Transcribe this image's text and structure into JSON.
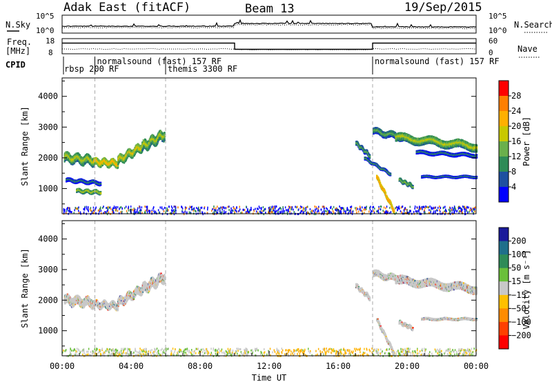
{
  "header": {
    "station": "Adak East (fitACF)",
    "beam": "Beam 13",
    "date": "19/Sep/2015"
  },
  "noise_panel": {
    "left_label": "N.Sky",
    "right_label": "N.Search",
    "left_ticks": [
      "10^5",
      "10^0"
    ],
    "right_ticks": [
      "10^5",
      "10^0"
    ]
  },
  "freq_panel": {
    "left_label_1": "Freq.",
    "left_label_2": "[MHz]",
    "right_label": "Nave",
    "left_ticks": [
      "18",
      "8"
    ],
    "right_ticks": [
      "60",
      "0"
    ]
  },
  "cpid": {
    "label": "CPID",
    "segments": [
      {
        "name": "rbsp 200 RF",
        "start_h": 0,
        "end_h": 1.9
      },
      {
        "name": "normalsound (fast) 157 RF",
        "start_h": 1.9,
        "end_h": 6.0
      },
      {
        "name": "themis 3300 RF",
        "start_h": 6.0,
        "end_h": 18.0
      },
      {
        "name": "normalsound (fast) 157 RF",
        "start_h": 18.0,
        "end_h": 24.0
      }
    ]
  },
  "power_panel": {
    "ylabel": "Slant Range [km]",
    "colorbar_label": "Power [dB]",
    "colorbar_ticks": [
      "28",
      "24",
      "20",
      "16",
      "12",
      "8",
      "4"
    ],
    "colorbar_colors": [
      "#ff0000",
      "#ff7f00",
      "#ffb000",
      "#c8c800",
      "#6ab04c",
      "#2e8b57",
      "#1e50a0",
      "#0000ff"
    ]
  },
  "velocity_panel": {
    "ylabel": "Slant Range [km]",
    "colorbar_label": "Velocity [m s⁻¹]",
    "colorbar_ticks": [
      "200",
      "100",
      "50",
      "15",
      "−15",
      "−50",
      "−100",
      "−200"
    ],
    "colorbar_colors": [
      "#1a1a9a",
      "#1f6f8b",
      "#2e8b57",
      "#6abf3a",
      "#c8c8c8",
      "#ffc000",
      "#ff8c00",
      "#ff4000",
      "#ff0000"
    ]
  },
  "x_axis": {
    "label": "Time UT",
    "ticks": [
      "00:00",
      "04:00",
      "08:00",
      "12:00",
      "16:00",
      "20:00",
      "00:00"
    ]
  },
  "chart_data": {
    "type": "heatmap",
    "title": "Adak East (fitACF) Beam 13 19/Sep/2015",
    "xlabel": "Time UT",
    "ylabel": "Slant Range [km]",
    "xlim_hours": [
      0,
      24
    ],
    "ylim_km": [
      180,
      4600
    ],
    "ytick_values_km": [
      1000,
      2000,
      3000,
      4000
    ],
    "xtick_hours": [
      0,
      4,
      8,
      12,
      16,
      20,
      24
    ],
    "mode_change_hours": [
      1.9,
      6.0,
      18.0
    ],
    "frequency_mhz": [
      {
        "start_h": 0,
        "end_h": 10,
        "value": 15.5
      },
      {
        "start_h": 10,
        "end_h": 18,
        "value": 10.5
      },
      {
        "start_h": 18,
        "end_h": 24,
        "value": 15.5
      }
    ],
    "power_bands": [
      {
        "t0": 0.1,
        "t1": 1.8,
        "r_start": 2050,
        "r_end": 1950,
        "width": 280,
        "db": 18
      },
      {
        "t0": 1.8,
        "t1": 3.2,
        "r_start": 1900,
        "r_end": 1850,
        "width": 220,
        "db": 22
      },
      {
        "t0": 3.2,
        "t1": 4.6,
        "r_start": 1950,
        "r_end": 2400,
        "width": 260,
        "db": 20
      },
      {
        "t0": 4.6,
        "t1": 5.9,
        "r_start": 2400,
        "r_end": 2800,
        "width": 300,
        "db": 18
      },
      {
        "t0": 0.2,
        "t1": 2.2,
        "r_start": 1300,
        "r_end": 1200,
        "width": 120,
        "db": 10
      },
      {
        "t0": 0.8,
        "t1": 2.2,
        "r_start": 950,
        "r_end": 900,
        "width": 120,
        "db": 18
      },
      {
        "t0": 17.0,
        "t1": 17.8,
        "r_start": 2500,
        "r_end": 2100,
        "width": 140,
        "db": 14
      },
      {
        "t0": 18.0,
        "t1": 20.5,
        "r_start": 2900,
        "r_end": 2600,
        "width": 200,
        "db": 14
      },
      {
        "t0": 19.3,
        "t1": 24.0,
        "r_start": 2700,
        "r_end": 2400,
        "width": 250,
        "db": 18
      },
      {
        "t0": 20.5,
        "t1": 24.0,
        "r_start": 2200,
        "r_end": 2100,
        "width": 120,
        "db": 10
      },
      {
        "t0": 18.2,
        "t1": 19.2,
        "r_start": 1400,
        "r_end": 300,
        "width": 120,
        "db": 26
      },
      {
        "t0": 19.5,
        "t1": 20.3,
        "r_start": 1300,
        "r_end": 1100,
        "width": 120,
        "db": 16
      },
      {
        "t0": 20.8,
        "t1": 24.0,
        "r_start": 1400,
        "r_end": 1400,
        "width": 80,
        "db": 10
      },
      {
        "t0": 17.5,
        "t1": 19.0,
        "r_start": 2000,
        "r_end": 1500,
        "width": 100,
        "db": 12
      }
    ],
    "velocity_bands": [
      {
        "t0": 0.1,
        "t1": 1.8,
        "r_start": 2050,
        "r_end": 1950,
        "width": 280,
        "v": 0
      },
      {
        "t0": 1.8,
        "t1": 3.2,
        "r_start": 1900,
        "r_end": 1850,
        "width": 220,
        "v": 0
      },
      {
        "t0": 3.2,
        "t1": 4.6,
        "r_start": 1950,
        "r_end": 2400,
        "width": 260,
        "v": 0
      },
      {
        "t0": 4.6,
        "t1": 5.9,
        "r_start": 2400,
        "r_end": 2800,
        "width": 300,
        "v": 0
      },
      {
        "t0": 17.0,
        "t1": 17.8,
        "r_start": 2500,
        "r_end": 2100,
        "width": 140,
        "v": 0
      },
      {
        "t0": 18.0,
        "t1": 20.5,
        "r_start": 2900,
        "r_end": 2600,
        "width": 200,
        "v": 0
      },
      {
        "t0": 19.3,
        "t1": 24.0,
        "r_start": 2700,
        "r_end": 2400,
        "width": 250,
        "v": 0
      },
      {
        "t0": 18.2,
        "t1": 19.2,
        "r_start": 1400,
        "r_end": 300,
        "width": 120,
        "v": 0
      },
      {
        "t0": 19.5,
        "t1": 20.3,
        "r_start": 1300,
        "r_end": 1100,
        "width": 120,
        "v": 0
      },
      {
        "t0": 20.8,
        "t1": 24.0,
        "r_start": 1400,
        "r_end": 1400,
        "width": 80,
        "v": 0
      }
    ],
    "ground_scatter_band_km": [
      200,
      450
    ]
  }
}
